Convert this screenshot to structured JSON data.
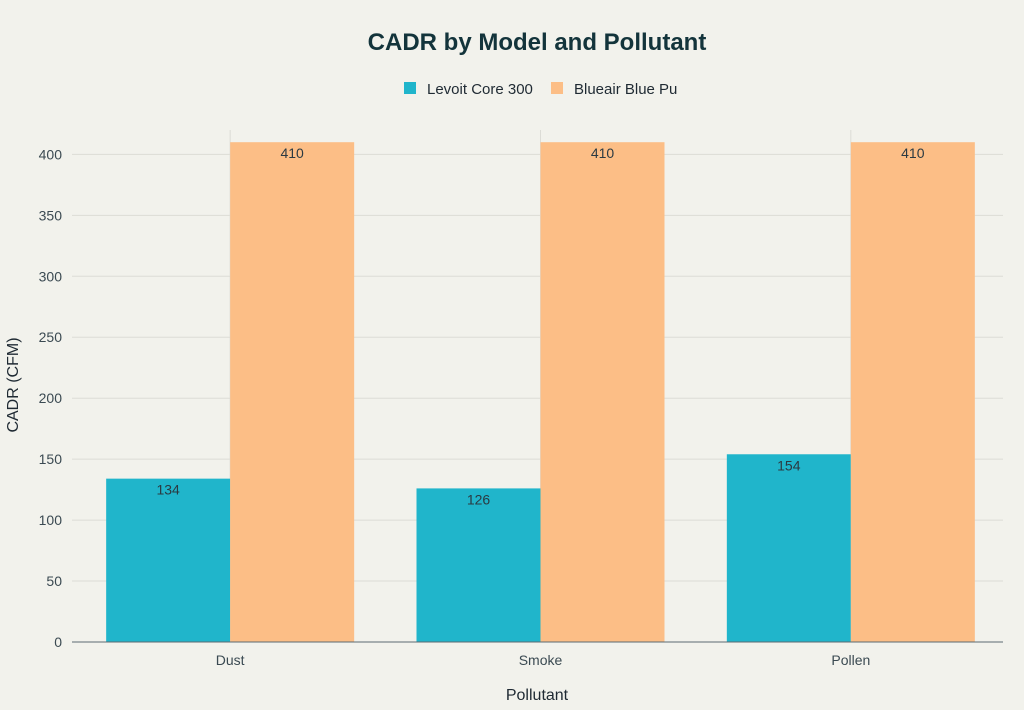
{
  "chart_data": {
    "type": "bar",
    "title": "CADR by Model and Pollutant",
    "xlabel": "Pollutant",
    "ylabel": "CADR (CFM)",
    "categories": [
      "Dust",
      "Smoke",
      "Pollen"
    ],
    "series": [
      {
        "name": "Levoit Core 300",
        "values": [
          134,
          126,
          154
        ],
        "color": "#20b5cb"
      },
      {
        "name": "Blueair Blue Pu",
        "values": [
          410,
          410,
          410
        ],
        "color": "#fcbe86"
      }
    ],
    "ylim": [
      0,
      420
    ],
    "yticks": [
      0,
      50,
      100,
      150,
      200,
      250,
      300,
      350,
      400
    ],
    "grid": true,
    "legend_position": "top-center",
    "data_labels": true
  }
}
